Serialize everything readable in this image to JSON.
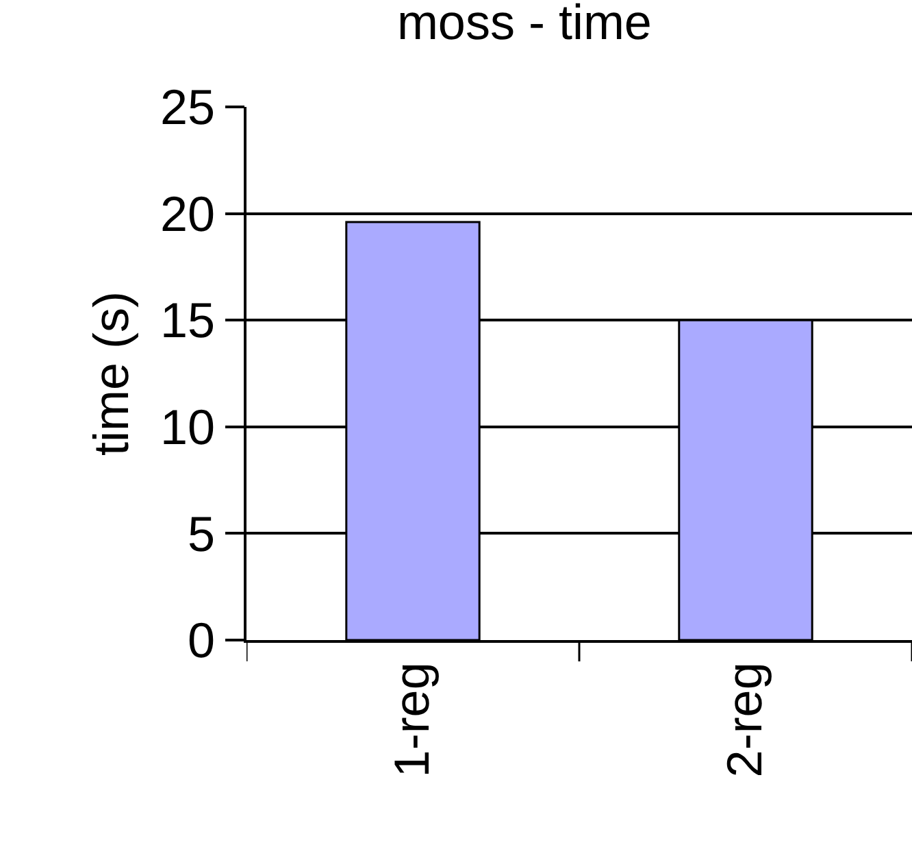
{
  "chart_data": {
    "type": "bar",
    "title": "moss - time",
    "ylabel": "time (s)",
    "categories": [
      "1-reg",
      "2-reg"
    ],
    "series": [
      {
        "color": "#aaaaff",
        "values": [
          19.6,
          15
        ]
      }
    ],
    "ylim": [
      0,
      25
    ],
    "yticks": [
      0,
      5,
      10,
      15,
      20,
      25
    ],
    "grid": "y"
  }
}
